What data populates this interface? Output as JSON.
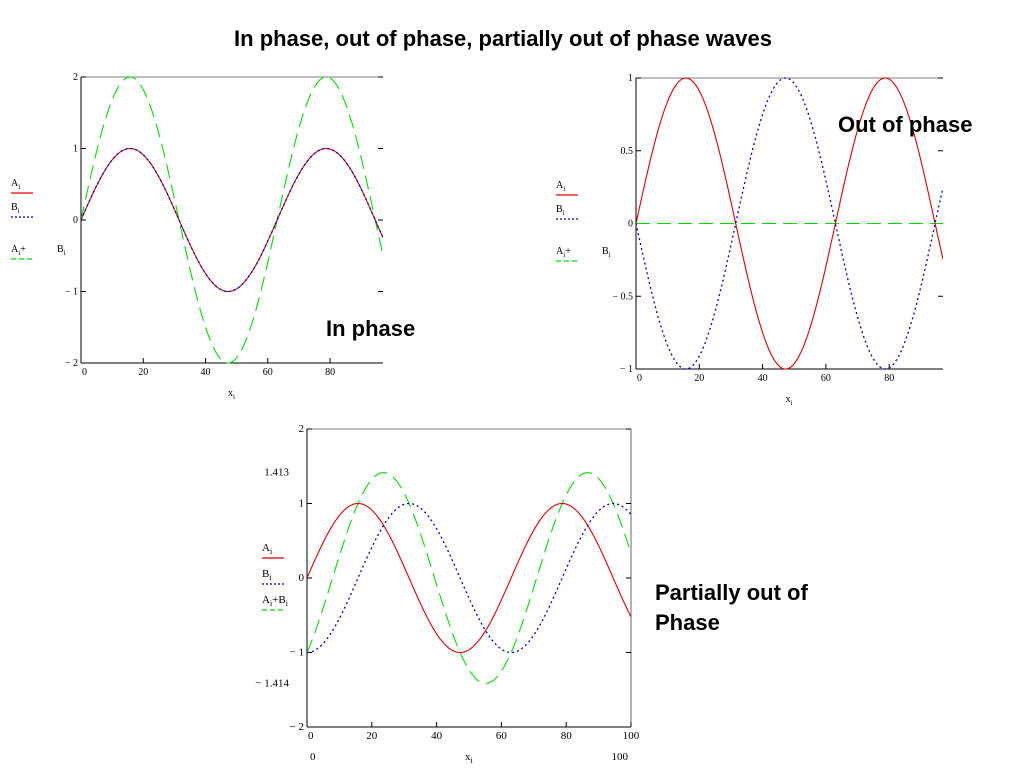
{
  "title": "In phase, out of phase, partially out of phase waves",
  "labels": {
    "in_phase": "In phase",
    "out_of_phase": "Out of phase",
    "partial_line1": "Partially out of",
    "partial_line2": "Phase"
  },
  "colors": {
    "A": "#e00000",
    "B": "#0000cc",
    "sum": "#00dd00",
    "axis": "#000000"
  },
  "chart_data": [
    {
      "type": "line",
      "caption": "In phase",
      "xlabel": "x",
      "xlabel_sub": "i",
      "xlim": [
        0,
        97
      ],
      "ylim": [
        -2,
        2
      ],
      "xticks": [
        0,
        20,
        40,
        60,
        80
      ],
      "yticks": [
        -2,
        -1,
        0,
        1,
        2
      ],
      "ytick_labels": [
        "− 2",
        "− 1",
        "0",
        "1",
        "2"
      ],
      "legend": [
        {
          "text": "A",
          "sub": "i",
          "tail": "",
          "style": "solid",
          "color": "#e00000"
        },
        {
          "text": "B",
          "sub": "i",
          "tail": "",
          "style": "dotted",
          "color": "#0000cc"
        },
        {
          "text": "A",
          "sub": "i",
          "tail": "+",
          "style": "dashed",
          "color": "#00dd00",
          "side": "B",
          "side_sub": "i"
        }
      ],
      "series": [
        {
          "name": "A",
          "style": "solid",
          "color": "#e00000",
          "amplitude": 1,
          "phase_deg": 0,
          "period": 63
        },
        {
          "name": "B",
          "style": "dotted",
          "color": "#0000cc",
          "amplitude": 1,
          "phase_deg": 0,
          "period": 63
        },
        {
          "name": "A+B",
          "style": "dashed",
          "color": "#00dd00",
          "amplitude": 2,
          "phase_deg": 0,
          "period": 63
        }
      ]
    },
    {
      "type": "line",
      "caption": "Out of phase",
      "xlabel": "x",
      "xlabel_sub": "i",
      "xlim": [
        0,
        97
      ],
      "ylim": [
        -1,
        1
      ],
      "xticks": [
        0,
        20,
        40,
        60,
        80
      ],
      "yticks": [
        -1,
        -0.5,
        0,
        0.5,
        1
      ],
      "ytick_labels": [
        "− 1",
        "− 0.5",
        "0",
        "0.5",
        "1"
      ],
      "legend": [
        {
          "text": "A",
          "sub": "i",
          "tail": "",
          "style": "solid",
          "color": "#e00000"
        },
        {
          "text": "B",
          "sub": "i",
          "tail": "",
          "style": "dotted",
          "color": "#0000cc"
        },
        {
          "text": "A",
          "sub": "i",
          "tail": "+",
          "style": "dashed",
          "color": "#00dd00",
          "side": "B",
          "side_sub": "i"
        }
      ],
      "series": [
        {
          "name": "A",
          "style": "solid",
          "color": "#e00000",
          "amplitude": 1,
          "phase_deg": 0,
          "period": 63
        },
        {
          "name": "B",
          "style": "dotted",
          "color": "#0000cc",
          "amplitude": -1,
          "phase_deg": 0,
          "period": 63
        },
        {
          "name": "A+B",
          "style": "dashed",
          "color": "#00dd00",
          "amplitude": 0,
          "phase_deg": 0,
          "period": 63
        }
      ]
    },
    {
      "type": "line",
      "caption": "Partially out of Phase",
      "xlabel": "x",
      "xlabel_sub": "i",
      "xlim": [
        0,
        100
      ],
      "ylim": [
        -2,
        2
      ],
      "xticks": [
        0,
        20,
        40,
        60,
        80,
        100
      ],
      "yticks": [
        -2,
        -1,
        0,
        1,
        2
      ],
      "ytick_labels": [
        "− 2",
        "− 1",
        "0",
        "1",
        "2"
      ],
      "extra_left_labels": [
        {
          "y": 1.413,
          "text": "1.413"
        },
        {
          "y": -1.414,
          "text": "− 1.414"
        }
      ],
      "extra_bottom_labels": [
        {
          "x": 0,
          "text": "0"
        },
        {
          "x": 100,
          "text": "100"
        }
      ],
      "legend": [
        {
          "text": "A",
          "sub": "i",
          "tail": "",
          "style": "solid",
          "color": "#e00000"
        },
        {
          "text": "B",
          "sub": "i",
          "tail": "",
          "style": "dotted",
          "color": "#0000cc"
        },
        {
          "text": "A",
          "sub": "i",
          "tail": "+B",
          "tail_sub": "i",
          "style": "dashed",
          "color": "#00dd00"
        }
      ],
      "series": [
        {
          "name": "A",
          "style": "solid",
          "color": "#e00000",
          "amplitude": 1,
          "phase_deg": 0,
          "period": 63
        },
        {
          "name": "B",
          "style": "dotted",
          "color": "#0000cc",
          "amplitude": 1,
          "phase_deg": -90,
          "period": 63
        },
        {
          "name": "A+B",
          "style": "dashed",
          "color": "#00dd00",
          "amplitude": 1.414,
          "phase_deg": -45,
          "period": 63
        }
      ]
    }
  ]
}
